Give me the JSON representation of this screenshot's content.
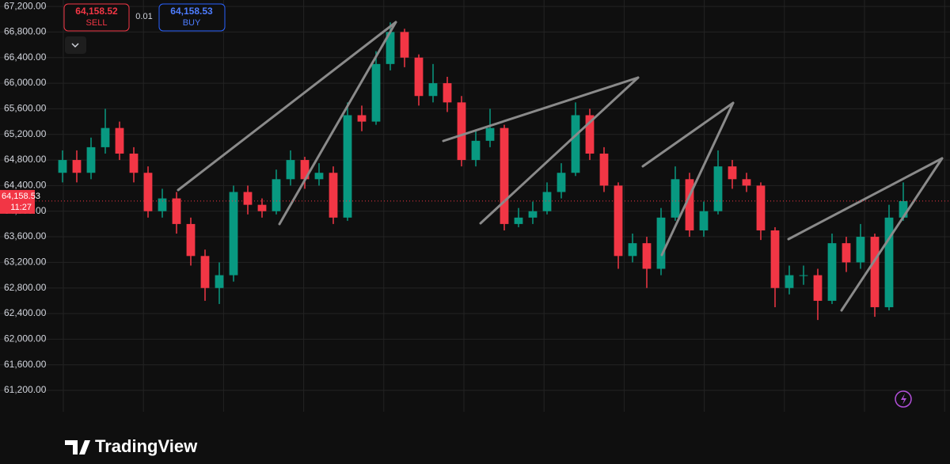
{
  "chart_data": {
    "type": "candlestick",
    "ylim": [
      60050,
      67300
    ],
    "yticks": [
      {
        "value": 61200,
        "label": "61,200.00"
      },
      {
        "value": 61600,
        "label": "61,600.00"
      },
      {
        "value": 62000,
        "label": "62,000.00"
      },
      {
        "value": 62400,
        "label": "62,400.00"
      },
      {
        "value": 62800,
        "label": "62,800.00"
      },
      {
        "value": 63200,
        "label": "63,200.00"
      },
      {
        "value": 63600,
        "label": "63,600.00"
      },
      {
        "value": 64000,
        "label": "64,000.00"
      },
      {
        "value": 64400,
        "label": "64,400.00"
      },
      {
        "value": 64800,
        "label": "64,800.00"
      },
      {
        "value": 65200,
        "label": "65,200.00"
      },
      {
        "value": 65600,
        "label": "65,600.00"
      },
      {
        "value": 66000,
        "label": "66,000.00"
      },
      {
        "value": 66400,
        "label": "66,400.00"
      },
      {
        "value": 66800,
        "label": "66,800.00"
      },
      {
        "value": 67200,
        "label": "67,200.00"
      }
    ],
    "grid": true,
    "up_color": "#089981",
    "down_color": "#f23645",
    "open": [
      64600,
      64800,
      64600,
      65000,
      65300,
      64900,
      64600,
      64000,
      64200,
      63800,
      63300,
      62800,
      63000,
      64300,
      64100,
      64000,
      64500,
      64800,
      64500,
      64600,
      63900,
      65500,
      65400,
      66300,
      66800,
      66400,
      65800,
      66000,
      65700,
      64800,
      65100,
      65300,
      63800,
      63900,
      64000,
      64300,
      64600,
      65500,
      64900,
      64400,
      63300,
      63500,
      63100,
      63900,
      64500,
      63700,
      64000,
      64700,
      64500,
      64400,
      63700,
      62800,
      63000,
      63000,
      62600,
      63500,
      63200,
      63600,
      62500,
      63900
    ],
    "high": [
      64950,
      64950,
      65150,
      65600,
      65400,
      65000,
      64700,
      64350,
      64300,
      63900,
      63400,
      63200,
      64400,
      64400,
      64200,
      64650,
      64950,
      64850,
      64750,
      64700,
      65700,
      65650,
      66500,
      66950,
      66850,
      66450,
      66300,
      66100,
      65800,
      65250,
      65600,
      65350,
      64050,
      64150,
      64450,
      64750,
      65700,
      65600,
      65000,
      64450,
      63650,
      63600,
      64050,
      64700,
      64600,
      64150,
      64950,
      64800,
      64600,
      64450,
      63750,
      63150,
      63150,
      63100,
      63650,
      63600,
      63800,
      63650,
      64100,
      64450
    ],
    "low": [
      64450,
      64450,
      64500,
      64900,
      64800,
      64450,
      63900,
      63900,
      63650,
      63150,
      62600,
      62550,
      62900,
      63950,
      63900,
      63950,
      64400,
      64350,
      64400,
      63800,
      63850,
      65250,
      65350,
      66200,
      66250,
      65650,
      65700,
      65550,
      64700,
      64700,
      65000,
      63700,
      63750,
      63800,
      63950,
      64200,
      64550,
      64800,
      64300,
      63100,
      63200,
      62800,
      63000,
      63850,
      63600,
      63600,
      63950,
      64350,
      64300,
      63550,
      62500,
      62700,
      62850,
      62300,
      62550,
      63050,
      63100,
      62350,
      62450,
      63850
    ],
    "close": [
      64800,
      64600,
      65000,
      65300,
      64900,
      64600,
      64000,
      64200,
      63800,
      63300,
      62800,
      63000,
      64300,
      64100,
      64000,
      64500,
      64800,
      64500,
      64600,
      63900,
      65500,
      65400,
      66300,
      66800,
      66400,
      65800,
      66000,
      65700,
      64800,
      65100,
      65300,
      63800,
      63900,
      64000,
      64300,
      64600,
      65500,
      64900,
      64400,
      63300,
      63500,
      63100,
      63900,
      64500,
      63700,
      64000,
      64700,
      64500,
      64400,
      63700,
      62800,
      63000,
      63000,
      62600,
      63500,
      63200,
      63600,
      62500,
      63900,
      64158.53
    ],
    "last_price": {
      "value": 64158.53,
      "label": "64,158.53"
    },
    "countdown": "11:27",
    "watermark": "TradingView"
  },
  "trading_panel": {
    "sell_price": "64,158.52",
    "sell_label": "SELL",
    "spread": "0.01",
    "buy_price": "64,158.53",
    "buy_label": "BUY"
  }
}
